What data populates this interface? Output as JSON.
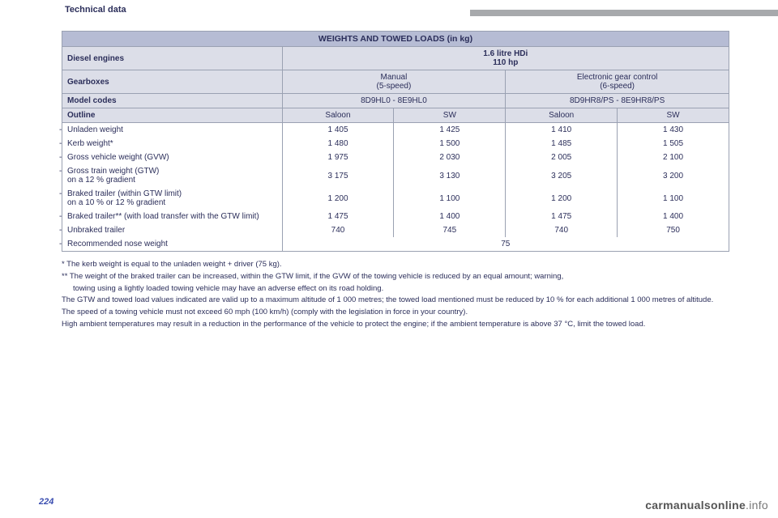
{
  "page": {
    "header": "Technical data",
    "number": "224",
    "brand_bold": "carmanualsonline",
    "brand_rest": ".info"
  },
  "colors": {
    "body": "#2b2e5a",
    "pagenum": "#3a4db0"
  },
  "table": {
    "title": "WEIGHTS AND TOWED LOADS (in kg)",
    "engine_label": "Diesel engines",
    "engine_value_l1": "1.6 litre HDi",
    "engine_value_l2": "110 hp",
    "gearbox_label": "Gearboxes",
    "gearbox1_l1": "Manual",
    "gearbox1_l2": "(5-speed)",
    "gearbox2_l1": "Electronic gear control",
    "gearbox2_l2": "(6-speed)",
    "model_label": "Model codes",
    "model1": "8D9HL0 - 8E9HL0",
    "model2": "8D9HR8/PS - 8E9HR8/PS",
    "outline_label": "Outline",
    "outline_cols": [
      "Saloon",
      "SW",
      "Saloon",
      "SW"
    ],
    "rows": [
      {
        "label": "Unladen weight",
        "vals": [
          "1 405",
          "1 425",
          "1 410",
          "1 430"
        ]
      },
      {
        "label": "Kerb weight*",
        "vals": [
          "1 480",
          "1 500",
          "1 485",
          "1 505"
        ]
      },
      {
        "label": "Gross vehicle weight (GVW)",
        "vals": [
          "1 975",
          "2 030",
          "2 005",
          "2 100"
        ]
      },
      {
        "label": "Gross train weight (GTW)",
        "sub": "on a 12 % gradient",
        "vals": [
          "3 175",
          "3 130",
          "3 205",
          "3 200"
        ]
      },
      {
        "label": "Braked trailer (within GTW limit)",
        "sub": "on a 10 % or 12 % gradient",
        "vals": [
          "1 200",
          "1 100",
          "1 200",
          "1 100"
        ]
      },
      {
        "label": "Braked trailer** (with load transfer with the GTW limit)",
        "vals": [
          "1 475",
          "1 400",
          "1 475",
          "1 400"
        ]
      },
      {
        "label": "Unbraked trailer",
        "vals": [
          "740",
          "745",
          "740",
          "750"
        ]
      },
      {
        "label": "Recommended nose weight",
        "full": "75"
      }
    ]
  },
  "footnotes": {
    "f1": "* The kerb weight is equal to the unladen weight + driver (75 kg).",
    "f2": "** The weight of the braked trailer can be increased, within the GTW limit, if the GVW of the towing vehicle is reduced by an equal amount; warning,",
    "f2b": "towing using a lightly loaded towing vehicle may have an adverse effect on its road holding.",
    "f3": "The GTW and towed load values indicated are valid up to a maximum altitude of 1 000 metres; the towed load mentioned must be reduced by 10 % for each additional 1 000 metres of altitude.",
    "f4": "The speed of a towing vehicle must not exceed 60 mph (100 km/h) (comply with the legislation in force in your country).",
    "f5": "High ambient temperatures may result in a reduction in the performance of the vehicle to protect the engine; if the ambient temperature is above 37 °C, limit the towed load."
  }
}
